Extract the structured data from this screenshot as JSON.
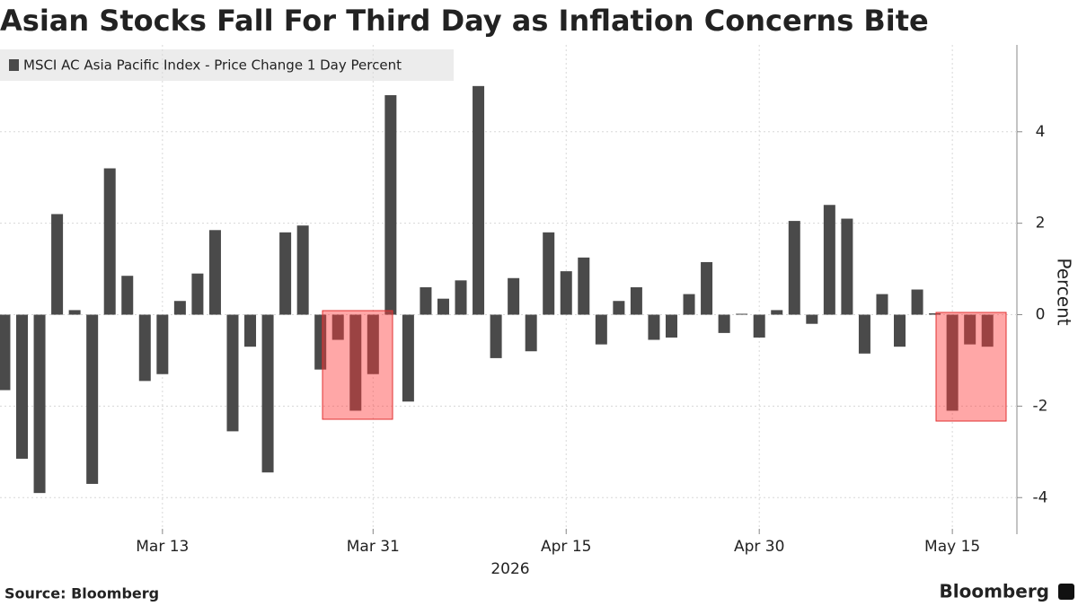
{
  "chart_data": {
    "type": "bar",
    "title": "Asian Stocks Fall For Third Day as Inflation Concerns Bite",
    "legend_label": "MSCI AC Asia Pacific Index - Price Change 1 Day Percent",
    "y_axis_label": "Percent",
    "x_axis_label": "2026",
    "source": "Source: Bloomberg",
    "brand": "Bloomberg",
    "color": "#4a4a4a",
    "categories": [
      null,
      null,
      null,
      null,
      null,
      null,
      null,
      null,
      null,
      "Mar 13",
      null,
      null,
      null,
      null,
      null,
      null,
      null,
      null,
      null,
      null,
      null,
      "Mar 31",
      null,
      null,
      null,
      null,
      null,
      null,
      null,
      null,
      null,
      null,
      "Apr 15",
      null,
      null,
      null,
      null,
      null,
      null,
      null,
      null,
      null,
      null,
      "Apr 30",
      null,
      null,
      null,
      null,
      null,
      null,
      null,
      null,
      null,
      null,
      "May 15",
      null,
      null
    ],
    "values": [
      -1.65,
      -3.15,
      -3.9,
      2.2,
      0.1,
      -3.7,
      3.2,
      0.85,
      -1.45,
      -1.3,
      0.3,
      0.9,
      1.85,
      -2.55,
      -0.7,
      -3.45,
      1.8,
      1.95,
      -1.2,
      -0.55,
      -2.1,
      -1.3,
      4.8,
      -1.9,
      0.6,
      0.35,
      0.75,
      5.0,
      -0.95,
      0.8,
      -0.8,
      1.8,
      0.95,
      1.25,
      -0.65,
      0.3,
      0.6,
      -0.55,
      -0.5,
      0.45,
      1.15,
      -0.4,
      0.02,
      -0.5,
      0.1,
      2.05,
      -0.2,
      2.4,
      2.1,
      -0.85,
      0.45,
      -0.7,
      0.55,
      0.03,
      -2.1,
      -0.65,
      -0.7
    ],
    "ylim": [
      -4.8,
      5.9
    ],
    "yticks": [
      -4,
      -2,
      0,
      2,
      4
    ],
    "grid": true
  }
}
